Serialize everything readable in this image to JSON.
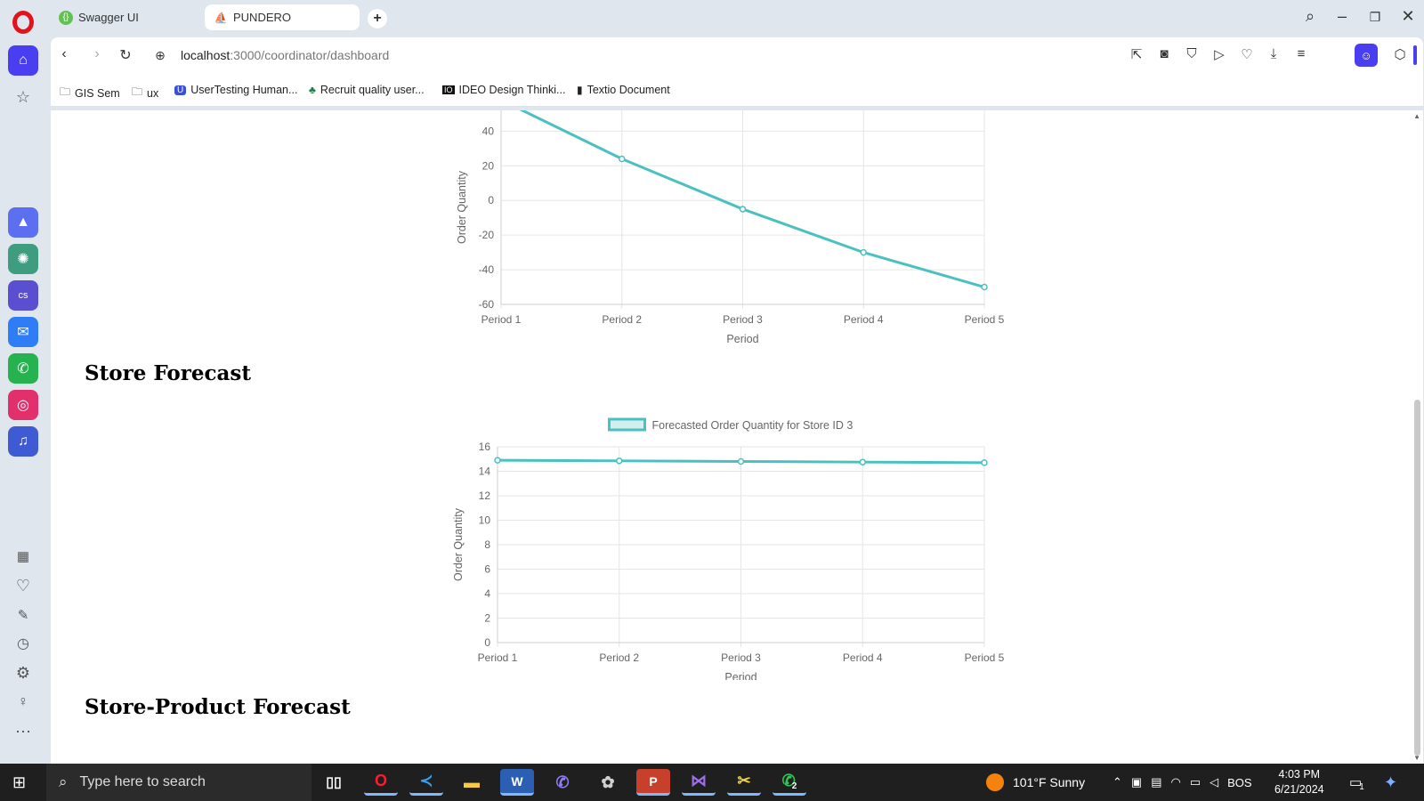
{
  "browser": {
    "tabs": [
      {
        "label": "Swagger UI"
      },
      {
        "label": "PUNDERO"
      }
    ],
    "url_host": "localhost",
    "url_path": ":3000/coordinator/dashboard",
    "bookmarks": [
      {
        "label": "GIS Sem"
      },
      {
        "label": "ux"
      },
      {
        "label": "UserTesting Human..."
      },
      {
        "label": "Recruit quality user..."
      },
      {
        "label": "IDEO Design Thinki..."
      },
      {
        "label": "Textio Document"
      }
    ]
  },
  "page": {
    "store_forecast_title": "Store Forecast",
    "store_product_forecast_title": "Store-Product Forecast"
  },
  "chart_data": [
    {
      "type": "line",
      "categories": [
        "Period 1",
        "Period 2",
        "Period 3",
        "Period 4",
        "Period 5"
      ],
      "series": [
        {
          "values": [
            58,
            24,
            -5,
            -30,
            -50
          ]
        }
      ],
      "xlabel": "Period",
      "ylabel": "Order Quantity",
      "yticks": [
        -60,
        -40,
        -20,
        0,
        20,
        40
      ],
      "ylim": [
        -60,
        52
      ],
      "grid": true,
      "color": "#4bc0c0",
      "partially_visible": true
    },
    {
      "type": "line",
      "categories": [
        "Period 1",
        "Period 2",
        "Period 3",
        "Period 4",
        "Period 5"
      ],
      "series": [
        {
          "name": "Forecasted Order Quantity for Store ID 3",
          "values": [
            14.9,
            14.85,
            14.8,
            14.75,
            14.7
          ]
        }
      ],
      "xlabel": "Period",
      "ylabel": "Order Quantity",
      "yticks": [
        0,
        2,
        4,
        6,
        8,
        10,
        12,
        14,
        16
      ],
      "ylim": [
        0,
        16
      ],
      "grid": true,
      "legend": "top",
      "color": "#4bc0c0"
    }
  ],
  "taskbar": {
    "search_placeholder": "Type here to search",
    "weather": "101°F  Sunny",
    "language": "BOS",
    "time": "4:03 PM",
    "date": "6/21/2024",
    "notifications": "1",
    "whatsapp_badge": "2"
  }
}
